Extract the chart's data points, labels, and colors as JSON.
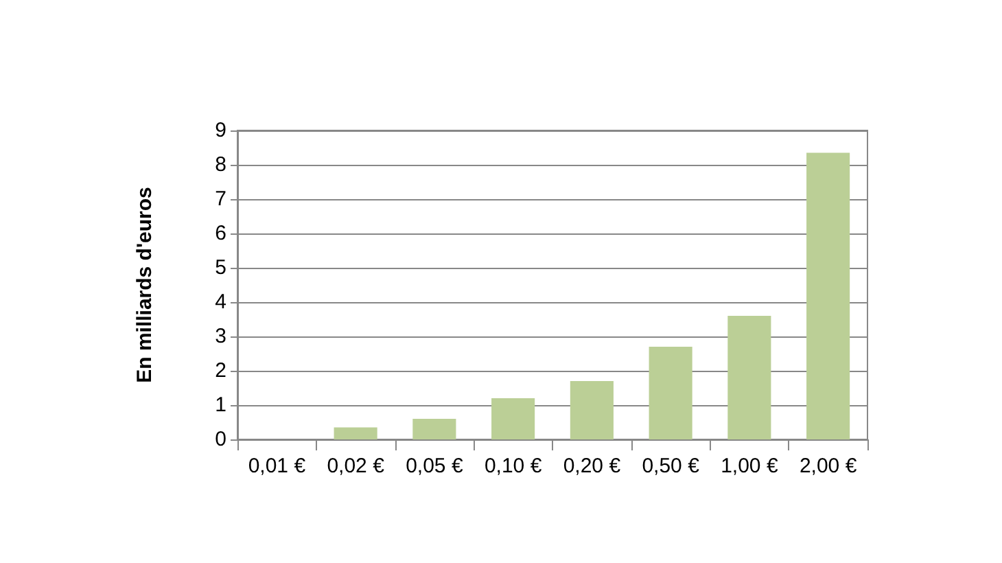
{
  "chart_data": {
    "type": "bar",
    "ylabel": "En milliards d'euros",
    "categories": [
      "0,01 €",
      "0,02 €",
      "0,05 €",
      "0,10 €",
      "0,20 €",
      "0,50 €",
      "1,00 €",
      "2,00 €"
    ],
    "values": [
      0,
      0.35,
      0.6,
      1.2,
      1.7,
      2.7,
      3.6,
      8.35
    ],
    "color": "#bbcf96",
    "ylim": [
      0,
      9
    ],
    "yticks": [
      0,
      1,
      2,
      3,
      4,
      5,
      6,
      7,
      8,
      9
    ],
    "grid": "y"
  }
}
